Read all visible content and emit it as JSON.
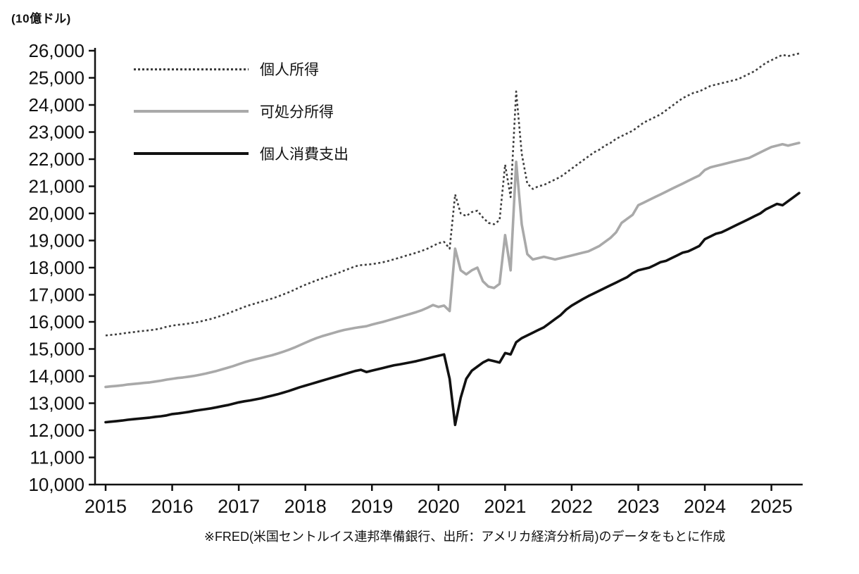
{
  "unit_label": "(10億ドル)",
  "source_note": "※FRED(米国セントルイス連邦準備銀行、出所：アメリカ経済分析局)のデータをもとに作成",
  "chart_data": {
    "type": "line",
    "title": "",
    "unit": "10億ドル",
    "frequency": "monthly",
    "x_range": [
      "2015-01",
      "2025-06"
    ],
    "x_tick_labels": [
      "2015",
      "2016",
      "2017",
      "2018",
      "2019",
      "2020",
      "2021",
      "2022",
      "2023",
      "2024",
      "2025"
    ],
    "ylim": [
      10000,
      26000
    ],
    "y_tick_step": 1000,
    "grid": false,
    "legend_position": "top-left",
    "axis_color": "#111111",
    "series": [
      {
        "name": "個人所得",
        "style": "dotted",
        "color": "#3d3d3d",
        "values": [
          15500,
          15520,
          15540,
          15570,
          15600,
          15620,
          15650,
          15670,
          15690,
          15720,
          15760,
          15820,
          15860,
          15890,
          15910,
          15940,
          15970,
          16010,
          16060,
          16110,
          16170,
          16240,
          16310,
          16390,
          16470,
          16550,
          16620,
          16680,
          16740,
          16800,
          16860,
          16930,
          17010,
          17090,
          17180,
          17280,
          17370,
          17450,
          17530,
          17600,
          17670,
          17740,
          17810,
          17890,
          17970,
          18050,
          18090,
          18110,
          18130,
          18160,
          18200,
          18250,
          18310,
          18370,
          18430,
          18490,
          18550,
          18620,
          18700,
          18800,
          18900,
          18950,
          18700,
          20700,
          20000,
          19900,
          20050,
          20100,
          19850,
          19650,
          19600,
          19750,
          21800,
          20600,
          24500,
          22200,
          21100,
          20900,
          21000,
          21050,
          21150,
          21250,
          21350,
          21500,
          21650,
          21800,
          21950,
          22100,
          22250,
          22350,
          22500,
          22600,
          22750,
          22850,
          22950,
          23050,
          23200,
          23350,
          23450,
          23550,
          23650,
          23800,
          23950,
          24100,
          24250,
          24350,
          24450,
          24500,
          24600,
          24700,
          24750,
          24800,
          24850,
          24900,
          24950,
          25050,
          25150,
          25250,
          25400,
          25550,
          25650,
          25750,
          25850,
          25800,
          25850,
          25900
        ]
      },
      {
        "name": "可処分所得",
        "style": "solid",
        "color": "#a9a9a9",
        "values": [
          13600,
          13620,
          13640,
          13660,
          13690,
          13710,
          13730,
          13750,
          13770,
          13800,
          13830,
          13870,
          13900,
          13930,
          13950,
          13980,
          14010,
          14050,
          14090,
          14140,
          14190,
          14250,
          14310,
          14370,
          14440,
          14510,
          14570,
          14620,
          14670,
          14720,
          14770,
          14830,
          14900,
          14970,
          15050,
          15140,
          15230,
          15320,
          15400,
          15470,
          15530,
          15590,
          15650,
          15700,
          15740,
          15780,
          15810,
          15840,
          15900,
          15950,
          16000,
          16060,
          16120,
          16180,
          16240,
          16300,
          16360,
          16430,
          16520,
          16620,
          16550,
          16600,
          16400,
          18700,
          17900,
          17750,
          17900,
          18000,
          17500,
          17300,
          17250,
          17400,
          19200,
          17900,
          21900,
          19600,
          18500,
          18300,
          18350,
          18400,
          18350,
          18300,
          18350,
          18400,
          18450,
          18500,
          18550,
          18600,
          18700,
          18800,
          18950,
          19100,
          19300,
          19650,
          19800,
          19950,
          20300,
          20400,
          20500,
          20600,
          20700,
          20800,
          20900,
          21000,
          21100,
          21200,
          21300,
          21400,
          21600,
          21700,
          21750,
          21800,
          21850,
          21900,
          21950,
          22000,
          22050,
          22150,
          22250,
          22350,
          22450,
          22500,
          22550,
          22500,
          22550,
          22600
        ]
      },
      {
        "name": "個人消費支出",
        "style": "solid",
        "color": "#111111",
        "values": [
          12300,
          12320,
          12340,
          12360,
          12390,
          12410,
          12430,
          12450,
          12470,
          12500,
          12520,
          12550,
          12600,
          12620,
          12650,
          12680,
          12720,
          12750,
          12780,
          12810,
          12850,
          12890,
          12930,
          12980,
          13030,
          13070,
          13100,
          13140,
          13180,
          13230,
          13280,
          13330,
          13390,
          13450,
          13520,
          13590,
          13650,
          13710,
          13770,
          13830,
          13890,
          13950,
          14010,
          14070,
          14130,
          14190,
          14230,
          14150,
          14200,
          14250,
          14300,
          14350,
          14400,
          14430,
          14470,
          14510,
          14550,
          14600,
          14650,
          14700,
          14750,
          14800,
          13900,
          12200,
          13200,
          13900,
          14200,
          14350,
          14500,
          14600,
          14550,
          14500,
          14850,
          14800,
          15250,
          15400,
          15500,
          15600,
          15700,
          15800,
          15950,
          16100,
          16250,
          16450,
          16600,
          16720,
          16840,
          16950,
          17050,
          17150,
          17250,
          17350,
          17450,
          17550,
          17650,
          17800,
          17900,
          17950,
          18000,
          18100,
          18200,
          18250,
          18350,
          18450,
          18550,
          18600,
          18700,
          18800,
          19050,
          19150,
          19250,
          19300,
          19400,
          19500,
          19600,
          19700,
          19800,
          19900,
          20000,
          20150,
          20250,
          20350,
          20300,
          20450,
          20600,
          20750
        ]
      }
    ]
  }
}
